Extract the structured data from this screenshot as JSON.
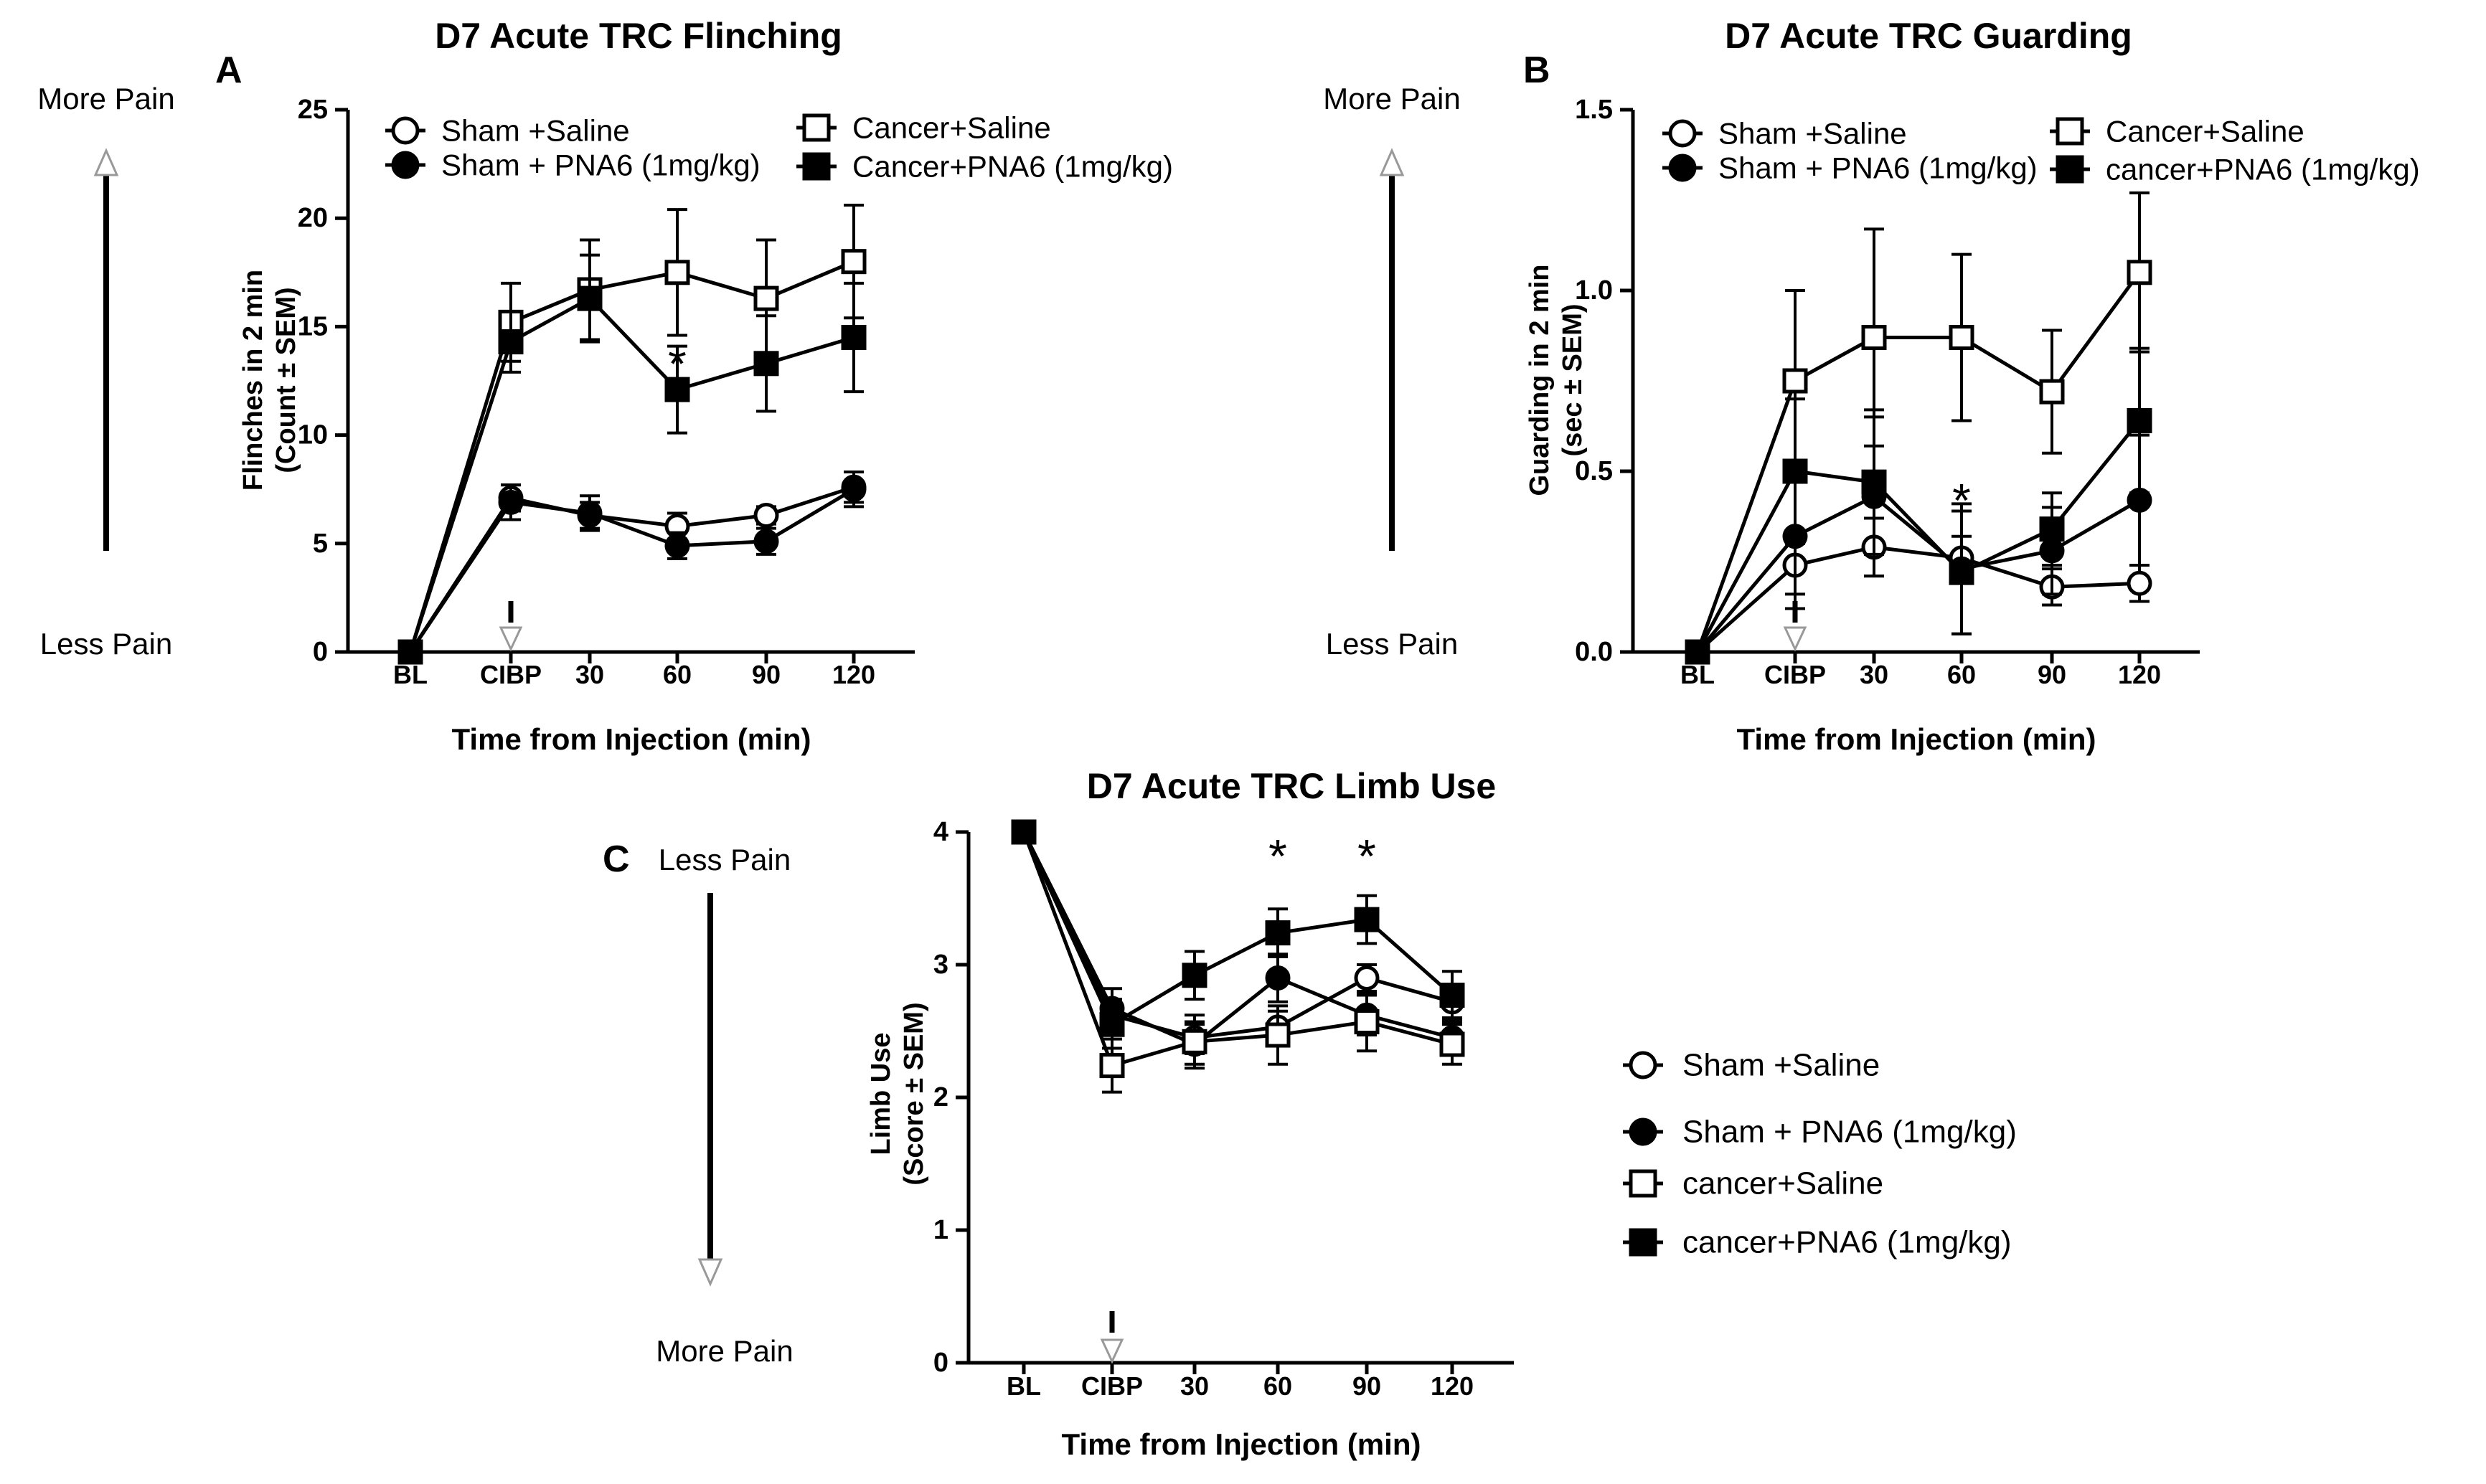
{
  "chart_data": [
    {
      "panel": "A",
      "type": "line",
      "title": "D7 Acute TRC Flinching",
      "xlabel": "Time from Injection (min)",
      "ylabel": [
        "Flinches in 2 min",
        "(Count ± SEM)"
      ],
      "categories": [
        "BL",
        "CIBP",
        "30",
        "60",
        "90",
        "120"
      ],
      "ylim": [
        0,
        25
      ],
      "yticks": [
        0,
        5,
        10,
        15,
        20,
        25
      ],
      "ytick_labels": [
        "0",
        "5",
        "10",
        "15",
        "20",
        "25"
      ],
      "injection_at": "CIBP",
      "pain_top": "More Pain",
      "pain_bottom": "Less Pain",
      "significance": [
        {
          "category": "60",
          "label": "*",
          "value": 13.3
        }
      ],
      "series": [
        {
          "name": "Sham +Saline",
          "marker": "circle-open",
          "values": [
            0,
            7.1,
            6.3,
            5.8,
            6.3,
            7.6
          ],
          "errors": [
            0,
            0.6,
            0.6,
            0.6,
            0.4,
            0.7
          ]
        },
        {
          "name": "Sham + PNA6 (1mg/kg)",
          "marker": "circle-filled",
          "values": [
            0,
            6.9,
            6.4,
            4.9,
            5.1,
            7.5
          ],
          "errors": [
            0,
            0.8,
            0.8,
            0.6,
            0.6,
            0.8
          ]
        },
        {
          "name": "Cancer+Saline",
          "marker": "square-open",
          "values": [
            0,
            15.2,
            16.7,
            17.5,
            16.3,
            18.0
          ],
          "errors": [
            0,
            1.8,
            2.3,
            2.9,
            2.7,
            2.6
          ]
        },
        {
          "name": "Cancer+PNA6 (1mg/kg)",
          "marker": "square-filled",
          "values": [
            0,
            14.3,
            16.3,
            12.1,
            13.3,
            14.5
          ],
          "errors": [
            0,
            1.4,
            2.0,
            2.0,
            2.2,
            2.5
          ]
        }
      ]
    },
    {
      "panel": "B",
      "type": "line",
      "title": "D7 Acute TRC Guarding",
      "xlabel": "Time from Injection (min)",
      "ylabel": [
        "Guarding in 2 min",
        "(sec ± SEM)"
      ],
      "categories": [
        "BL",
        "CIBP",
        "30",
        "60",
        "90",
        "120"
      ],
      "ylim": [
        0,
        1.5
      ],
      "yticks": [
        0,
        0.5,
        1.0,
        1.5
      ],
      "ytick_labels": [
        "0.0",
        "0.5",
        "1.0",
        "1.5"
      ],
      "injection_at": "CIBP",
      "pain_top": "More Pain",
      "pain_bottom": "Less Pain",
      "significance": [
        {
          "category": "60",
          "label": "*",
          "value": 0.42
        }
      ],
      "series": [
        {
          "name": "Sham +Saline",
          "marker": "circle-open",
          "values": [
            0,
            0.24,
            0.29,
            0.26,
            0.18,
            0.19
          ],
          "errors": [
            0,
            0.08,
            0.08,
            0.06,
            0.05,
            0.05
          ]
        },
        {
          "name": "Sham + PNA6 (1mg/kg)",
          "marker": "circle-filled",
          "values": [
            0,
            0.32,
            0.43,
            0.23,
            0.28,
            0.42
          ],
          "errors": [
            0,
            0.2,
            0.22,
            0.18,
            0.12,
            0.18
          ]
        },
        {
          "name": "Cancer+Saline",
          "marker": "square-open",
          "values": [
            0,
            0.75,
            0.87,
            0.87,
            0.72,
            1.05
          ],
          "errors": [
            0,
            0.25,
            0.3,
            0.23,
            0.17,
            0.22
          ]
        },
        {
          "name": "cancer+PNA6 (1mg/kg)",
          "marker": "square-filled",
          "values": [
            0,
            0.5,
            0.47,
            0.22,
            0.34,
            0.64
          ],
          "errors": [
            0,
            0.2,
            0.2,
            0.17,
            0.1,
            0.2
          ]
        }
      ]
    },
    {
      "panel": "C",
      "type": "line",
      "title": "D7 Acute TRC Limb Use",
      "xlabel": "Time from Injection (min)",
      "ylabel": [
        "Limb Use",
        "(Score ± SEM)"
      ],
      "categories": [
        "BL",
        "CIBP",
        "30",
        "60",
        "90",
        "120"
      ],
      "ylim": [
        0,
        4
      ],
      "yticks": [
        0,
        1,
        2,
        3,
        4
      ],
      "ytick_labels": [
        "0",
        "1",
        "2",
        "3",
        "4"
      ],
      "injection_at": "CIBP",
      "pain_top": "Less Pain",
      "pain_bottom": "More Pain",
      "significance": [
        {
          "category": "60",
          "label": "*",
          "value": 3.82
        },
        {
          "category": "90",
          "label": "*",
          "value": 3.82
        }
      ],
      "legend_items": [
        "Sham +Saline",
        "Sham + PNA6 (1mg/kg)",
        "cancer+Saline",
        "cancer+PNA6 (1mg/kg)"
      ],
      "series": [
        {
          "name": "Sham +Saline",
          "marker": "circle-open",
          "values": [
            4,
            2.62,
            2.45,
            2.53,
            2.9,
            2.72
          ],
          "errors": [
            0,
            0.12,
            0.12,
            0.12,
            0.1,
            0.12
          ]
        },
        {
          "name": "Sham + PNA6 (1mg/kg)",
          "marker": "circle-filled",
          "values": [
            4,
            2.67,
            2.4,
            2.9,
            2.62,
            2.45
          ],
          "errors": [
            0,
            0.15,
            0.15,
            0.18,
            0.15,
            0.12
          ]
        },
        {
          "name": "cancer+Saline",
          "marker": "square-open",
          "values": [
            4,
            2.24,
            2.42,
            2.47,
            2.57,
            2.4
          ],
          "errors": [
            0,
            0.2,
            0.2,
            0.22,
            0.22,
            0.15
          ]
        },
        {
          "name": "cancer+PNA6 (1mg/kg)",
          "marker": "square-filled",
          "values": [
            4,
            2.55,
            2.92,
            3.24,
            3.34,
            2.77
          ],
          "errors": [
            0,
            0.18,
            0.18,
            0.18,
            0.18,
            0.18
          ]
        }
      ]
    }
  ]
}
